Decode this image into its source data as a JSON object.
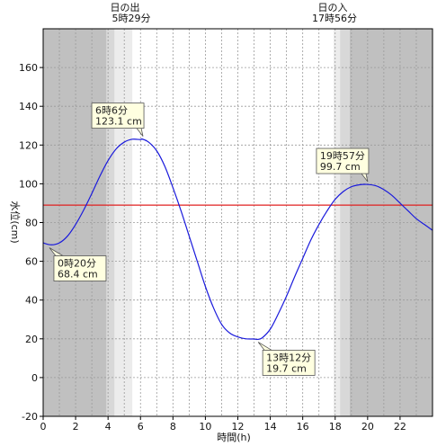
{
  "chart_data": {
    "type": "line",
    "xlabel": "時間(h)",
    "ylabel": "水位(cm)",
    "xlim": [
      0,
      24
    ],
    "ylim": [
      -20,
      180
    ],
    "x_ticks": [
      0,
      2,
      4,
      6,
      8,
      10,
      12,
      14,
      16,
      18,
      20,
      22
    ],
    "y_ticks": [
      -20,
      0,
      20,
      40,
      60,
      80,
      100,
      120,
      140,
      160
    ],
    "grid": true,
    "reference_line": {
      "y": 89,
      "color": "#e02020"
    },
    "line_color": "#1a1adc",
    "series": [
      {
        "x": [
          0,
          0.5,
          1,
          1.5,
          2,
          2.5,
          3,
          3.5,
          4,
          4.5,
          5,
          5.5,
          6,
          6.1,
          6.5,
          7,
          7.5,
          8,
          8.5,
          9,
          9.5,
          10,
          10.5,
          11,
          11.5,
          12,
          12.5,
          13,
          13.2,
          13.5,
          14,
          14.5,
          15,
          15.5,
          16,
          16.5,
          17,
          17.5,
          18,
          18.5,
          19,
          19.5,
          19.95,
          20.5,
          21,
          21.5,
          22,
          22.5,
          23,
          23.5,
          24
        ],
        "y": [
          69.5,
          68.5,
          69.5,
          73,
          79,
          86.5,
          95,
          104,
          112,
          118,
          121.5,
          123,
          122.8,
          123.1,
          121.5,
          117,
          109,
          98,
          86,
          73,
          60,
          47,
          36,
          27.5,
          23,
          21,
          20,
          19.9,
          19.7,
          20.5,
          25,
          33,
          42,
          52,
          61.5,
          71,
          79,
          86,
          92,
          96,
          98.5,
          99.5,
          99.7,
          99,
          97,
          94,
          90,
          86,
          82,
          79,
          76
        ]
      }
    ],
    "sun": {
      "sunrise_label": "日の出",
      "sunrise_time": "5時29分",
      "sunset_label": "日の入",
      "sunset_time": "17時56分",
      "night_color": "#c0c0c0",
      "twilight_mid_color": "#d8d8d8",
      "twilight_light_color": "#ececec",
      "day_color": "#ffffff",
      "bands": [
        {
          "from": 0,
          "to": 3.9,
          "tone": "night"
        },
        {
          "from": 3.9,
          "to": 4.4,
          "tone": "mid"
        },
        {
          "from": 4.4,
          "to": 5.0,
          "tone": "light"
        },
        {
          "from": 5.0,
          "to": 5.5,
          "tone": "light"
        },
        {
          "from": 5.5,
          "to": 17.9,
          "tone": "day"
        },
        {
          "from": 17.9,
          "to": 18.3,
          "tone": "light"
        },
        {
          "from": 18.3,
          "to": 18.9,
          "tone": "mid"
        },
        {
          "from": 18.9,
          "to": 24,
          "tone": "night"
        }
      ]
    },
    "annotations": [
      {
        "x": 0.33,
        "y": 68.4,
        "time": "0時20分",
        "value": "68.4 cm",
        "placement": "below"
      },
      {
        "x": 6.1,
        "y": 123.1,
        "time": "6時6分",
        "value": "123.1 cm",
        "placement": "above"
      },
      {
        "x": 13.2,
        "y": 19.7,
        "time": "13時12分",
        "value": "19.7 cm",
        "placement": "below"
      },
      {
        "x": 19.95,
        "y": 99.7,
        "time": "19時57分",
        "value": "99.7 cm",
        "placement": "above"
      }
    ]
  }
}
